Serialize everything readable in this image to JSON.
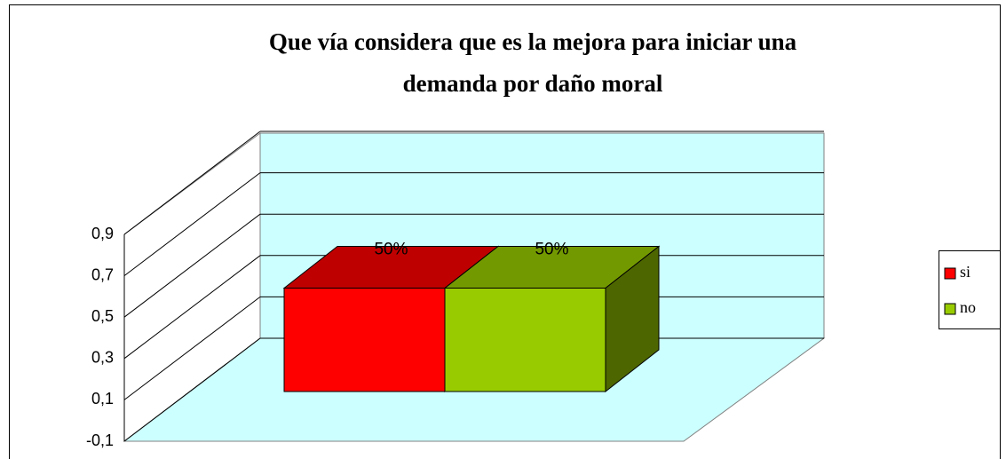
{
  "chart_data": {
    "type": "bar3d",
    "title": [
      "Que vía considera que es la mejora para iniciar una",
      "demanda por daño moral"
    ],
    "categories": [
      null
    ],
    "series": [
      {
        "name": "si",
        "color": "#ff0000",
        "values": [
          0.5
        ],
        "value_labels": [
          "50%"
        ]
      },
      {
        "name": "no",
        "color": "#99cc00",
        "values": [
          0.5
        ],
        "value_labels": [
          "50%"
        ]
      }
    ],
    "ylim": [
      -0.1,
      0.9
    ],
    "yticks": [
      {
        "value": -0.1,
        "label": "-0,1"
      },
      {
        "value": 0.1,
        "label": "0,1"
      },
      {
        "value": 0.3,
        "label": "0,3"
      },
      {
        "value": 0.5,
        "label": "0,5"
      },
      {
        "value": 0.7,
        "label": "0,7"
      },
      {
        "value": 0.9,
        "label": "0,9"
      }
    ],
    "grid": true,
    "legend": "right"
  }
}
